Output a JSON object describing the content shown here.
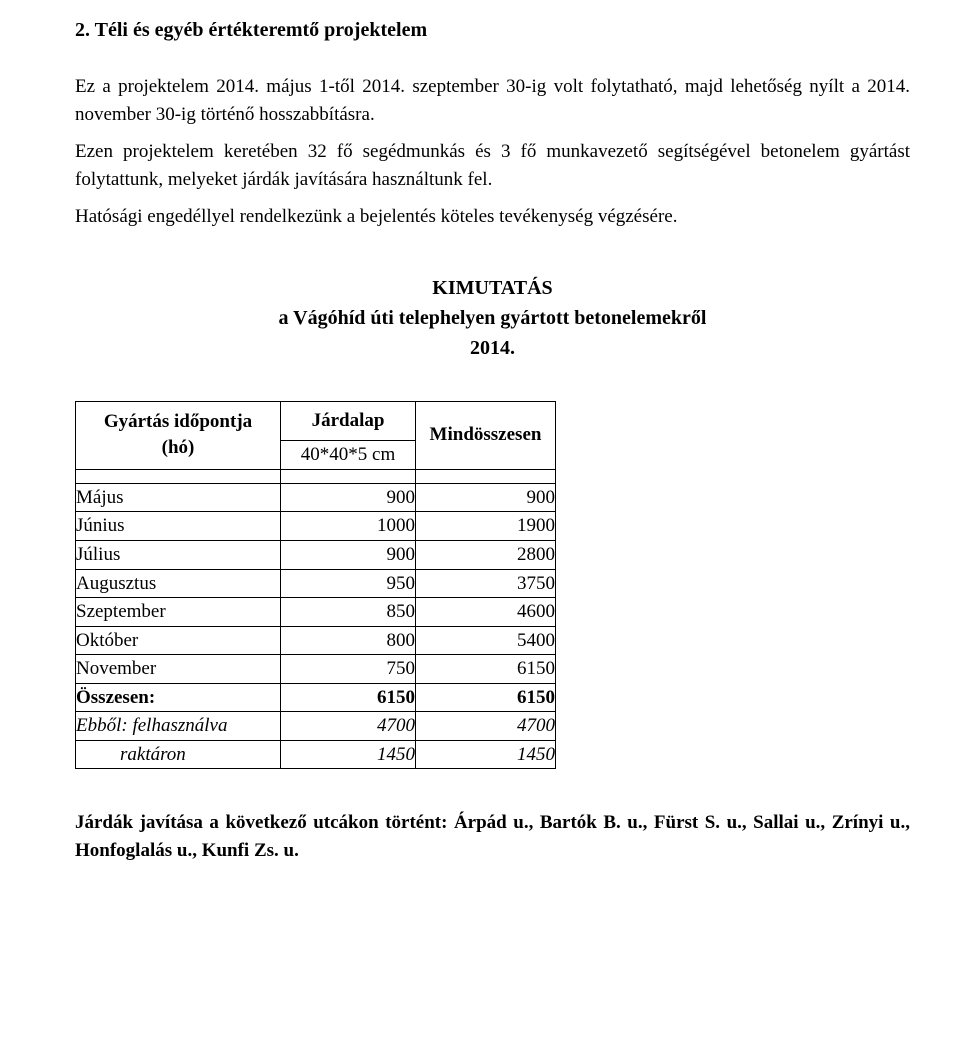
{
  "section": {
    "heading": "2.   Téli és egyéb értékteremtő projektelem",
    "p1": "Ez a projektelem 2014. május 1-től 2014. szeptember 30-ig volt folytatható, majd lehetőség nyílt a 2014. november 30-ig történő hosszabbításra.",
    "p2": "Ezen projektelem keretében 32 fő segédmunkás és 3 fő munkavezető segítségével betonelem gyártást folytattunk, melyeket járdák javítására használtunk fel.",
    "p3": "Hatósági engedéllyel rendelkezünk a bejelentés köteles tevékenység végzésére."
  },
  "report": {
    "title_line1": "KIMUTATÁS",
    "title_line2": "a Vágóhíd úti telephelyen gyártott betonelemekről",
    "title_line3": "2014."
  },
  "table": {
    "head": {
      "col1_line1": "Gyártás időpontja",
      "col1_line2": "(hó)",
      "col2_top": "Járdalap",
      "col2_sub": "40*40*5 cm",
      "col3": "Mindösszesen"
    },
    "rows": [
      {
        "label": "Május",
        "val": "900",
        "total": "900",
        "bold": false,
        "italic": false,
        "indent": false
      },
      {
        "label": "Június",
        "val": "1000",
        "total": "1900",
        "bold": false,
        "italic": false,
        "indent": false
      },
      {
        "label": "Július",
        "val": "900",
        "total": "2800",
        "bold": false,
        "italic": false,
        "indent": false
      },
      {
        "label": "Augusztus",
        "val": "950",
        "total": "3750",
        "bold": false,
        "italic": false,
        "indent": false
      },
      {
        "label": "Szeptember",
        "val": "850",
        "total": "4600",
        "bold": false,
        "italic": false,
        "indent": false
      },
      {
        "label": "Október",
        "val": "800",
        "total": "5400",
        "bold": false,
        "italic": false,
        "indent": false
      },
      {
        "label": "November",
        "val": "750",
        "total": "6150",
        "bold": false,
        "italic": false,
        "indent": false
      },
      {
        "label": "Összesen:",
        "val": "6150",
        "total": "6150",
        "bold": true,
        "italic": false,
        "indent": false
      },
      {
        "label": "Ebből: felhasználva",
        "val": "4700",
        "total": "4700",
        "bold": false,
        "italic": true,
        "indent": false
      },
      {
        "label": "raktáron",
        "val": "1450",
        "total": "1450",
        "bold": false,
        "italic": true,
        "indent": true
      }
    ]
  },
  "footer": {
    "line1": "Járdák javítása a következő utcákon történt: Árpád u., Bartók B. u., Fürst S. u., Sallai u.,",
    "line2": "Zrínyi u., Honfoglalás u., Kunfi Zs. u."
  }
}
